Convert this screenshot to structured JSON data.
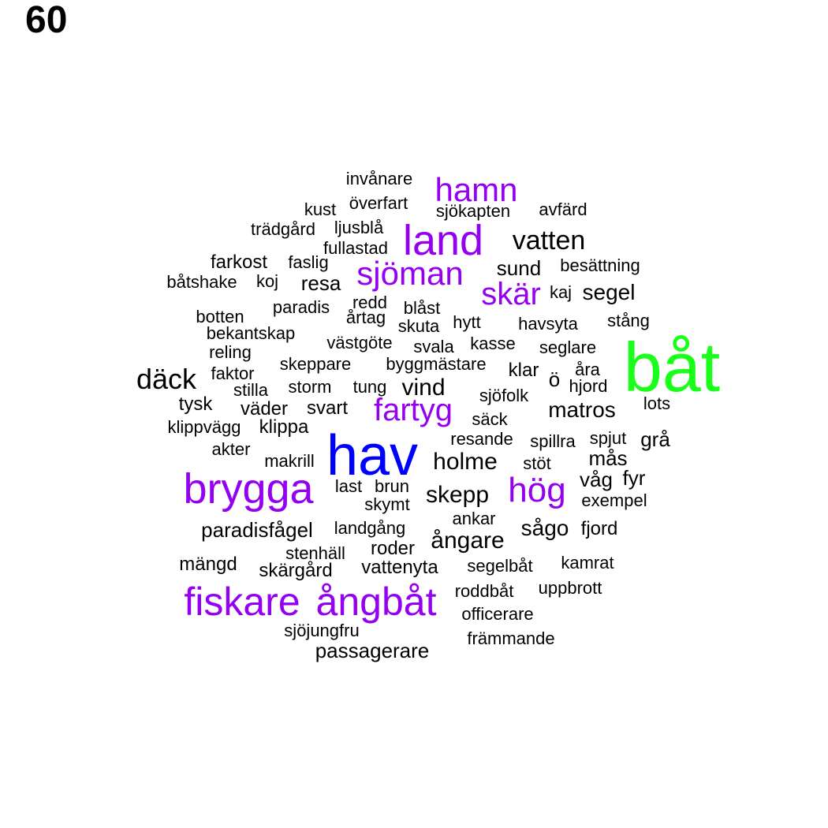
{
  "title": "60",
  "colors": {
    "black": "#000000",
    "purple": "#9400f0",
    "blue": "#0000ff",
    "green": "#19ff19"
  },
  "words": [
    {
      "text": "båt",
      "color": "green"
    },
    {
      "text": "hav",
      "color": "blue"
    },
    {
      "text": "brygga",
      "color": "purple"
    },
    {
      "text": "fiskare",
      "color": "purple"
    },
    {
      "text": "ångbåt",
      "color": "purple"
    },
    {
      "text": "land",
      "color": "purple"
    },
    {
      "text": "hamn",
      "color": "purple"
    },
    {
      "text": "sjöman",
      "color": "purple"
    },
    {
      "text": "skär",
      "color": "purple"
    },
    {
      "text": "fartyg",
      "color": "purple"
    },
    {
      "text": "hög",
      "color": "purple"
    },
    {
      "text": "vatten",
      "color": "black"
    },
    {
      "text": "däck",
      "color": "black"
    },
    {
      "text": "holme",
      "color": "black"
    },
    {
      "text": "skepp",
      "color": "black"
    },
    {
      "text": "ångare",
      "color": "black"
    },
    {
      "text": "vind",
      "color": "black"
    },
    {
      "text": "matros",
      "color": "black"
    },
    {
      "text": "segel",
      "color": "black"
    },
    {
      "text": "sund",
      "color": "black"
    },
    {
      "text": "passagerare",
      "color": "black"
    },
    {
      "text": "invånare",
      "color": "black"
    },
    {
      "text": "överfart",
      "color": "black"
    },
    {
      "text": "kust",
      "color": "black"
    },
    {
      "text": "sjökapten",
      "color": "black"
    },
    {
      "text": "avfärd",
      "color": "black"
    },
    {
      "text": "trädgård",
      "color": "black"
    },
    {
      "text": "ljusblå",
      "color": "black"
    },
    {
      "text": "fullastad",
      "color": "black"
    },
    {
      "text": "farkost",
      "color": "black"
    },
    {
      "text": "faslig",
      "color": "black"
    },
    {
      "text": "besättning",
      "color": "black"
    },
    {
      "text": "båtshake",
      "color": "black"
    },
    {
      "text": "koj",
      "color": "black"
    },
    {
      "text": "resa",
      "color": "black"
    },
    {
      "text": "kaj",
      "color": "black"
    },
    {
      "text": "paradis",
      "color": "black"
    },
    {
      "text": "redd",
      "color": "black"
    },
    {
      "text": "blåst",
      "color": "black"
    },
    {
      "text": "botten",
      "color": "black"
    },
    {
      "text": "årtag",
      "color": "black"
    },
    {
      "text": "skuta",
      "color": "black"
    },
    {
      "text": "hytt",
      "color": "black"
    },
    {
      "text": "havsyta",
      "color": "black"
    },
    {
      "text": "stång",
      "color": "black"
    },
    {
      "text": "bekantskap",
      "color": "black"
    },
    {
      "text": "västgöte",
      "color": "black"
    },
    {
      "text": "svala",
      "color": "black"
    },
    {
      "text": "kasse",
      "color": "black"
    },
    {
      "text": "seglare",
      "color": "black"
    },
    {
      "text": "reling",
      "color": "black"
    },
    {
      "text": "skeppare",
      "color": "black"
    },
    {
      "text": "byggmästare",
      "color": "black"
    },
    {
      "text": "klar",
      "color": "black"
    },
    {
      "text": "åra",
      "color": "black"
    },
    {
      "text": "faktor",
      "color": "black"
    },
    {
      "text": "ö",
      "color": "black"
    },
    {
      "text": "hjord",
      "color": "black"
    },
    {
      "text": "stilla",
      "color": "black"
    },
    {
      "text": "storm",
      "color": "black"
    },
    {
      "text": "tung",
      "color": "black"
    },
    {
      "text": "sjöfolk",
      "color": "black"
    },
    {
      "text": "lots",
      "color": "black"
    },
    {
      "text": "tysk",
      "color": "black"
    },
    {
      "text": "väder",
      "color": "black"
    },
    {
      "text": "svart",
      "color": "black"
    },
    {
      "text": "säck",
      "color": "black"
    },
    {
      "text": "klippvägg",
      "color": "black"
    },
    {
      "text": "klippa",
      "color": "black"
    },
    {
      "text": "resande",
      "color": "black"
    },
    {
      "text": "spillra",
      "color": "black"
    },
    {
      "text": "spjut",
      "color": "black"
    },
    {
      "text": "grå",
      "color": "black"
    },
    {
      "text": "akter",
      "color": "black"
    },
    {
      "text": "makrill",
      "color": "black"
    },
    {
      "text": "stöt",
      "color": "black"
    },
    {
      "text": "mås",
      "color": "black"
    },
    {
      "text": "våg",
      "color": "black"
    },
    {
      "text": "fyr",
      "color": "black"
    },
    {
      "text": "last",
      "color": "black"
    },
    {
      "text": "brun",
      "color": "black"
    },
    {
      "text": "skymt",
      "color": "black"
    },
    {
      "text": "exempel",
      "color": "black"
    },
    {
      "text": "ankar",
      "color": "black"
    },
    {
      "text": "paradisfågel",
      "color": "black"
    },
    {
      "text": "landgång",
      "color": "black"
    },
    {
      "text": "sågo",
      "color": "black"
    },
    {
      "text": "fjord",
      "color": "black"
    },
    {
      "text": "stenhäll",
      "color": "black"
    },
    {
      "text": "roder",
      "color": "black"
    },
    {
      "text": "mängd",
      "color": "black"
    },
    {
      "text": "skärgård",
      "color": "black"
    },
    {
      "text": "vattenyta",
      "color": "black"
    },
    {
      "text": "segelbåt",
      "color": "black"
    },
    {
      "text": "kamrat",
      "color": "black"
    },
    {
      "text": "roddbåt",
      "color": "black"
    },
    {
      "text": "uppbrott",
      "color": "black"
    },
    {
      "text": "officerare",
      "color": "black"
    },
    {
      "text": "sjöjungfru",
      "color": "black"
    },
    {
      "text": "främmande",
      "color": "black"
    }
  ]
}
